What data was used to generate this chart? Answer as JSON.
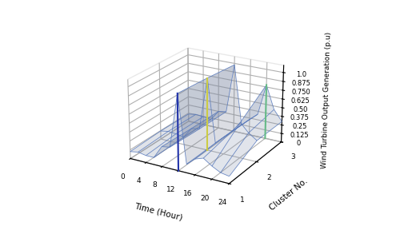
{
  "time_hours": [
    0,
    2,
    4,
    6,
    8,
    10,
    12,
    14,
    16,
    18,
    20,
    22,
    24
  ],
  "cluster_data": [
    [
      0.1,
      0.12,
      0.1,
      0.1,
      0.28,
      0.3,
      1.05,
      0.12,
      0.22,
      0.26,
      0.18,
      0.12,
      0.1
    ],
    [
      0.12,
      0.14,
      0.13,
      0.11,
      0.26,
      0.28,
      1.02,
      0.13,
      0.24,
      0.35,
      0.5,
      0.38,
      0.3
    ],
    [
      0.11,
      0.13,
      0.12,
      0.1,
      0.25,
      0.27,
      0.98,
      0.12,
      0.23,
      0.33,
      0.78,
      0.45,
      0.3
    ]
  ],
  "cluster_labels": [
    1,
    2,
    3
  ],
  "xlabel": "Time (Hour)",
  "ylabel": "Cluster No.",
  "zlabel": "Wind Turbine Output Generation (p.u)",
  "xticks": [
    0,
    4,
    8,
    12,
    16,
    20,
    24
  ],
  "yticks": [
    1,
    2,
    3
  ],
  "ztick_labels": [
    "0",
    "0.125",
    "0.25",
    "0.375",
    "0.50",
    "0.625",
    "0.750",
    "0.875",
    "1.0"
  ],
  "ztick_vals": [
    0,
    0.125,
    0.25,
    0.375,
    0.5,
    0.625,
    0.75,
    0.875,
    1.0
  ],
  "zlim": [
    0,
    1.1
  ],
  "figsize": [
    5.0,
    2.83
  ],
  "dpi": 100,
  "elev": 22,
  "azim": -60,
  "spike12_colors": [
    "#2233aa",
    "#cccc44"
  ],
  "spike20_color": "#66bb88",
  "wire_color": "#5577bb",
  "surface_color": "#aabbdd"
}
